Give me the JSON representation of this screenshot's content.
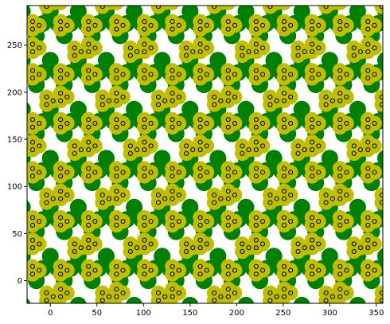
{
  "chart_data": {
    "type": "scatter",
    "title": "",
    "xlabel": "",
    "ylabel": "",
    "xlim": [
      -25,
      357
    ],
    "ylim": [
      -24,
      292
    ],
    "x_ticks": [
      0,
      50,
      100,
      150,
      200,
      250,
      300,
      350
    ],
    "y_ticks": [
      0,
      50,
      100,
      150,
      200,
      250
    ],
    "x_tick_labels": [
      "0",
      "50",
      "100",
      "150",
      "200",
      "250",
      "300",
      "350"
    ],
    "y_tick_labels": [
      "0",
      "50",
      "100",
      "150",
      "200",
      "250"
    ],
    "grid": false,
    "legend": "none",
    "pattern": {
      "description": "periodic kagome-like tiling of green and yellow circles with black ring markers",
      "lattice_a": [
        60,
        0
      ],
      "lattice_b": [
        30,
        52
      ],
      "x_range": [
        -20,
        350
      ],
      "y_range": [
        -20,
        290
      ],
      "green_radius": 9,
      "yellow_radius": 8,
      "ring_radius": 2.2
    },
    "series": [
      {
        "color": "#008000",
        "marker": "large-filled-circle"
      },
      {
        "color": "#bfbf00",
        "marker": "filled-circle"
      },
      {
        "color": "#000000",
        "marker": "small-ring"
      }
    ]
  },
  "colors": {
    "green": "#008000",
    "yellow": "#bfbf00",
    "ring": "#000000",
    "axes": "#000000",
    "background": "#ffffff"
  }
}
